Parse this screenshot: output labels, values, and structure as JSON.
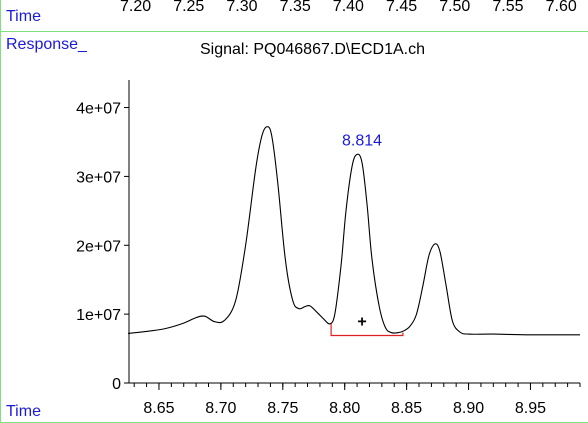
{
  "header": {
    "time_label": "Time",
    "top_axis_ticks": [
      "7.20",
      "7.25",
      "7.30",
      "7.35",
      "7.40",
      "7.45",
      "7.50",
      "7.55",
      "7.60"
    ],
    "response_label": "Response_",
    "signal_title": "Signal: PQ046867.D\\ECD1A.ch"
  },
  "footer": {
    "time_label": "Time"
  },
  "colors": {
    "label_blue": "#1a1adb",
    "frame_green": "#7fe07f",
    "integration_red": "#e02020",
    "trace": "#000000"
  },
  "chart_data": {
    "type": "line",
    "title": "Signal: PQ046867.D\\ECD1A.ch",
    "xlabel": "Time",
    "ylabel": "Response_",
    "xlim": [
      8.625,
      8.99
    ],
    "ylim": [
      0,
      44000000
    ],
    "x_ticks": [
      8.65,
      8.7,
      8.75,
      8.8,
      8.85,
      8.9,
      8.95
    ],
    "x_tick_labels": [
      "8.65",
      "8.70",
      "8.75",
      "8.80",
      "8.85",
      "8.90",
      "8.95"
    ],
    "y_ticks": [
      0,
      10000000,
      20000000,
      30000000,
      40000000
    ],
    "y_tick_labels": [
      "0",
      "1e+07",
      "2e+07",
      "3e+07",
      "4e+07"
    ],
    "x_minor_step": 0.01,
    "series": [
      {
        "x": [
          8.625,
          8.64,
          8.655,
          8.67,
          8.68,
          8.687,
          8.695,
          8.703,
          8.712,
          8.72,
          8.728,
          8.733,
          8.737,
          8.741,
          8.746,
          8.752,
          8.758,
          8.763,
          8.768,
          8.772,
          8.778,
          8.783,
          8.788,
          8.792,
          8.797,
          8.801,
          8.806,
          8.81,
          8.814,
          8.818,
          8.822,
          8.828,
          8.833,
          8.838,
          8.843,
          8.848,
          8.853,
          8.858,
          8.863,
          8.868,
          8.873,
          8.877,
          8.882,
          8.887,
          8.893,
          8.9,
          8.92,
          8.95,
          8.99
        ],
        "y": [
          7200000,
          7500000,
          7900000,
          8700000,
          9500000,
          9700000,
          8900000,
          9100000,
          12000000,
          20000000,
          31000000,
          35800000,
          37200000,
          36000000,
          29000000,
          18000000,
          12000000,
          10800000,
          11100000,
          11200000,
          10200000,
          9300000,
          8600000,
          10000000,
          17000000,
          25000000,
          31500000,
          33200000,
          32000000,
          26000000,
          18000000,
          11000000,
          8000000,
          7300000,
          7300000,
          7600000,
          8300000,
          10000000,
          14000000,
          18500000,
          20200000,
          19000000,
          14000000,
          9000000,
          7400000,
          7100000,
          7100000,
          7000000,
          7000000
        ]
      }
    ],
    "annotations": [
      {
        "text": "8.814",
        "x": 8.814,
        "y": 34500000
      },
      {
        "text": "+",
        "x": 8.814,
        "y": 8200000
      }
    ],
    "integration_baseline": {
      "x_start": 8.789,
      "x_end": 8.847,
      "y": 6900000,
      "peak_start_y": 8600000
    }
  }
}
